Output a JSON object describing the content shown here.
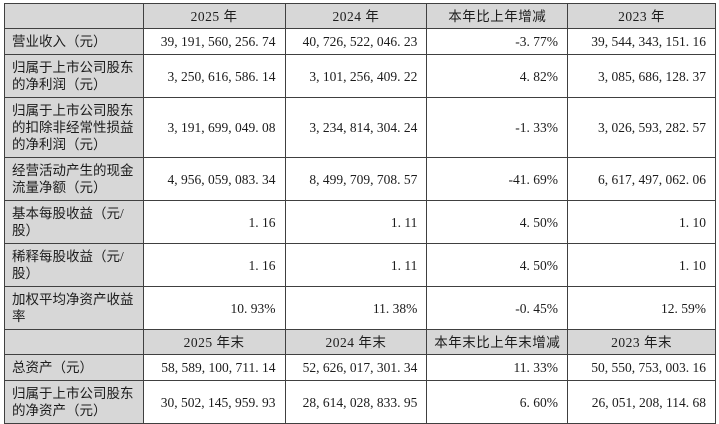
{
  "table": {
    "colors": {
      "header_bg": "#d7d7d7",
      "label_bg": "#d7d7d7",
      "border": "#404040",
      "text": "#1c1c1c"
    },
    "sections": [
      {
        "header": [
          "",
          "2025 年",
          "2024 年",
          "本年比上年增减",
          "2023 年"
        ],
        "rows": [
          {
            "label": "营业收入（元）",
            "values": [
              "39, 191, 560, 256. 74",
              "40, 726, 522, 046. 23",
              "-3. 77%",
              "39, 544, 343, 151. 16"
            ]
          },
          {
            "label": "归属于上市公司股东的净利润（元）",
            "values": [
              "3, 250, 616, 586. 14",
              "3, 101, 256, 409. 22",
              "4. 82%",
              "3, 085, 686, 128. 37"
            ]
          },
          {
            "label": "归属于上市公司股东的扣除非经常性损益的净利润（元）",
            "values": [
              "3, 191, 699, 049. 08",
              "3, 234, 814, 304. 24",
              "-1. 33%",
              "3, 026, 593, 282. 57"
            ]
          },
          {
            "label": "经营活动产生的现金流量净额（元）",
            "values": [
              "4, 956, 059, 083. 34",
              "8, 499, 709, 708. 57",
              "-41. 69%",
              "6, 617, 497, 062. 06"
            ]
          },
          {
            "label": "基本每股收益（元/股）",
            "values": [
              "1. 16",
              "1. 11",
              "4. 50%",
              "1. 10"
            ]
          },
          {
            "label": "稀释每股收益（元/股）",
            "values": [
              "1. 16",
              "1. 11",
              "4. 50%",
              "1. 10"
            ]
          },
          {
            "label": "加权平均净资产收益率",
            "values": [
              "10. 93%",
              "11. 38%",
              "-0. 45%",
              "12. 59%"
            ]
          }
        ]
      },
      {
        "header": [
          "",
          "2025 年末",
          "2024 年末",
          "本年末比上年末增减",
          "2023 年末"
        ],
        "rows": [
          {
            "label": "总资产（元）",
            "values": [
              "58, 589, 100, 711. 14",
              "52, 626, 017, 301. 34",
              "11. 33%",
              "50, 550, 753, 003. 16"
            ]
          },
          {
            "label": "归属于上市公司股东的净资产（元）",
            "values": [
              "30, 502, 145, 959. 93",
              "28, 614, 028, 833. 95",
              "6. 60%",
              "26, 051, 208, 114. 68"
            ]
          }
        ]
      }
    ]
  }
}
